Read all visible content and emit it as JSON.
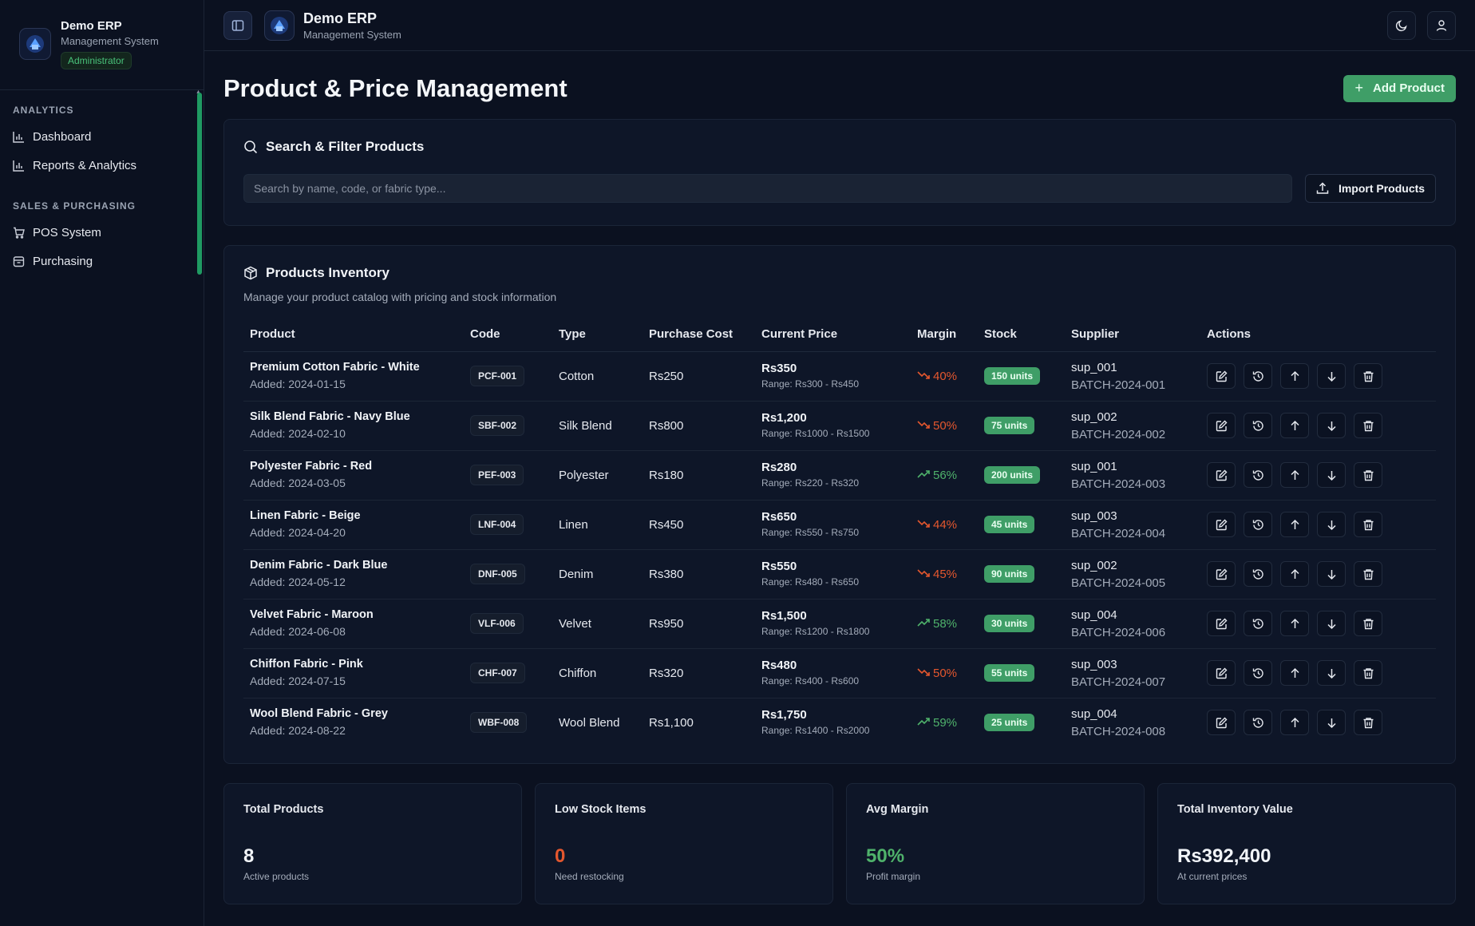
{
  "sidebar": {
    "app_name": "Demo ERP",
    "app_sub": "Management System",
    "role": "Administrator",
    "sections": [
      {
        "label": "ANALYTICS",
        "items": [
          {
            "label": "Dashboard",
            "icon": "bar-chart-icon"
          },
          {
            "label": "Reports & Analytics",
            "icon": "bar-chart-icon"
          }
        ]
      },
      {
        "label": "SALES & PURCHASING",
        "items": [
          {
            "label": "POS System",
            "icon": "cart-icon"
          },
          {
            "label": "Purchasing",
            "icon": "package-icon"
          }
        ]
      }
    ]
  },
  "topbar": {
    "app_name": "Demo ERP",
    "app_sub": "Management System"
  },
  "page": {
    "title": "Product & Price Management",
    "add_label": "Add Product"
  },
  "search": {
    "title": "Search & Filter Products",
    "placeholder": "Search by name, code, or fabric type...",
    "import_label": "Import Products"
  },
  "inventory": {
    "title": "Products Inventory",
    "description": "Manage your product catalog with pricing and stock information",
    "columns": [
      "Product",
      "Code",
      "Type",
      "Purchase Cost",
      "Current Price",
      "Margin",
      "Stock",
      "Supplier",
      "Actions"
    ],
    "rows": [
      {
        "name": "Premium Cotton Fabric - White",
        "added": "Added: 2024-01-15",
        "code": "PCF-001",
        "type": "Cotton",
        "cost": "Rs250",
        "price": "Rs350",
        "range": "Range: Rs300 - Rs450",
        "margin": "40%",
        "trend": "down",
        "stock": "150 units",
        "supplier": "sup_001",
        "batch": "BATCH-2024-001"
      },
      {
        "name": "Silk Blend Fabric - Navy Blue",
        "added": "Added: 2024-02-10",
        "code": "SBF-002",
        "type": "Silk Blend",
        "cost": "Rs800",
        "price": "Rs1,200",
        "range": "Range: Rs1000 - Rs1500",
        "margin": "50%",
        "trend": "down",
        "stock": "75 units",
        "supplier": "sup_002",
        "batch": "BATCH-2024-002"
      },
      {
        "name": "Polyester Fabric - Red",
        "added": "Added: 2024-03-05",
        "code": "PEF-003",
        "type": "Polyester",
        "cost": "Rs180",
        "price": "Rs280",
        "range": "Range: Rs220 - Rs320",
        "margin": "56%",
        "trend": "up",
        "stock": "200 units",
        "supplier": "sup_001",
        "batch": "BATCH-2024-003"
      },
      {
        "name": "Linen Fabric - Beige",
        "added": "Added: 2024-04-20",
        "code": "LNF-004",
        "type": "Linen",
        "cost": "Rs450",
        "price": "Rs650",
        "range": "Range: Rs550 - Rs750",
        "margin": "44%",
        "trend": "down",
        "stock": "45 units",
        "supplier": "sup_003",
        "batch": "BATCH-2024-004"
      },
      {
        "name": "Denim Fabric - Dark Blue",
        "added": "Added: 2024-05-12",
        "code": "DNF-005",
        "type": "Denim",
        "cost": "Rs380",
        "price": "Rs550",
        "range": "Range: Rs480 - Rs650",
        "margin": "45%",
        "trend": "down",
        "stock": "90 units",
        "supplier": "sup_002",
        "batch": "BATCH-2024-005"
      },
      {
        "name": "Velvet Fabric - Maroon",
        "added": "Added: 2024-06-08",
        "code": "VLF-006",
        "type": "Velvet",
        "cost": "Rs950",
        "price": "Rs1,500",
        "range": "Range: Rs1200 - Rs1800",
        "margin": "58%",
        "trend": "up",
        "stock": "30 units",
        "supplier": "sup_004",
        "batch": "BATCH-2024-006"
      },
      {
        "name": "Chiffon Fabric - Pink",
        "added": "Added: 2024-07-15",
        "code": "CHF-007",
        "type": "Chiffon",
        "cost": "Rs320",
        "price": "Rs480",
        "range": "Range: Rs400 - Rs600",
        "margin": "50%",
        "trend": "down",
        "stock": "55 units",
        "supplier": "sup_003",
        "batch": "BATCH-2024-007"
      },
      {
        "name": "Wool Blend Fabric - Grey",
        "added": "Added: 2024-08-22",
        "code": "WBF-008",
        "type": "Wool Blend",
        "cost": "Rs1,100",
        "price": "Rs1,750",
        "range": "Range: Rs1400 - Rs2000",
        "margin": "59%",
        "trend": "up",
        "stock": "25 units",
        "supplier": "sup_004",
        "batch": "BATCH-2024-008"
      }
    ]
  },
  "stats": [
    {
      "label": "Total Products",
      "value": "8",
      "sub": "Active products",
      "color": "#f1f4f8"
    },
    {
      "label": "Low Stock Items",
      "value": "0",
      "sub": "Need restocking",
      "color": "#e4572e"
    },
    {
      "label": "Avg Margin",
      "value": "50%",
      "sub": "Profit margin",
      "color": "#4fb26b"
    },
    {
      "label": "Total Inventory Value",
      "value": "Rs392,400",
      "sub": "At current prices",
      "color": "#f1f4f8"
    }
  ],
  "colors": {
    "accent": "#3f9e67",
    "danger": "#e4572e",
    "success": "#4fb26b"
  }
}
